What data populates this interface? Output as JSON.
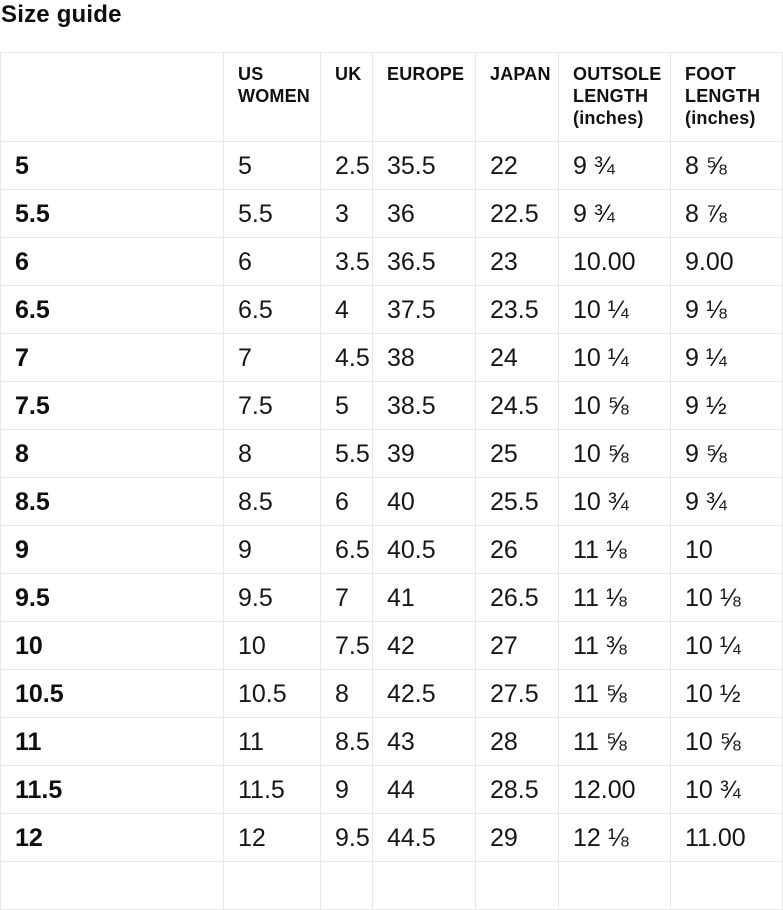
{
  "page": {
    "title": "Size guide"
  },
  "table": {
    "columns": [
      "",
      "US WOMEN",
      "UK",
      "EUROPE",
      "JAPAN",
      "OUTSOLE LENGTH (inches)",
      "FOOT LENGTH (inches)"
    ],
    "rows": [
      [
        "5",
        "5",
        "2.5",
        "35.5",
        "22",
        "9 ¾",
        "8 ⅝"
      ],
      [
        "5.5",
        "5.5",
        "3",
        "36",
        "22.5",
        "9 ¾",
        "8 ⅞"
      ],
      [
        "6",
        "6",
        "3.5",
        "36.5",
        "23",
        "10.00",
        "9.00"
      ],
      [
        "6.5",
        "6.5",
        "4",
        "37.5",
        "23.5",
        "10 ¼",
        "9 ⅛"
      ],
      [
        "7",
        "7",
        "4.5",
        "38",
        "24",
        "10 ¼",
        "9 ¼"
      ],
      [
        "7.5",
        "7.5",
        "5",
        "38.5",
        "24.5",
        "10 ⅝",
        "9 ½"
      ],
      [
        "8",
        "8",
        "5.5",
        "39",
        "25",
        "10 ⅝",
        "9 ⅝"
      ],
      [
        "8.5",
        "8.5",
        "6",
        "40",
        "25.5",
        "10 ¾",
        "9 ¾"
      ],
      [
        "9",
        "9",
        "6.5",
        "40.5",
        "26",
        "11 ⅛",
        "10"
      ],
      [
        "9.5",
        "9.5",
        "7",
        "41",
        "26.5",
        "11 ⅛",
        "10 ⅛"
      ],
      [
        "10",
        "10",
        "7.5",
        "42",
        "27",
        "11 ⅜",
        "10 ¼"
      ],
      [
        "10.5",
        "10.5",
        "8",
        "42.5",
        "27.5",
        "11 ⅝",
        "10 ½"
      ],
      [
        "11",
        "11",
        "8.5",
        "43",
        "28",
        "11 ⅝",
        "10 ⅝"
      ],
      [
        "11.5",
        "11.5",
        "9",
        "44",
        "28.5",
        "12.00",
        "10 ¾"
      ],
      [
        "12",
        "12",
        "9.5",
        "44.5",
        "29",
        "12 ⅛",
        "11.00"
      ]
    ]
  }
}
